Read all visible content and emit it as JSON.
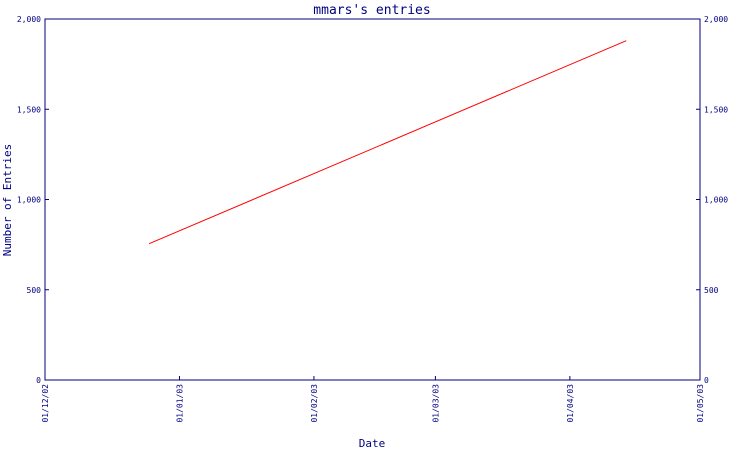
{
  "chart_data": {
    "type": "line",
    "title": "mmars's entries",
    "xlabel": "Date",
    "ylabel": "Number of Entries",
    "x_ticks": [
      "01/12/02",
      "01/01/03",
      "01/02/03",
      "01/03/03",
      "01/04/03",
      "01/05/03"
    ],
    "y_ticks": [
      "0",
      "500",
      "1,000",
      "1,500",
      "2,000"
    ],
    "y_tick_values": [
      0,
      500,
      1000,
      1500,
      2000
    ],
    "ylim": [
      0,
      2000
    ],
    "xlim": [
      "2002-12-01",
      "2003-05-01"
    ],
    "grid": false,
    "secondary_y_axis": true,
    "series": [
      {
        "color": "#ff0000",
        "points": [
          {
            "x": "2002-12-25",
            "y": 755
          },
          {
            "x": "2003-04-14",
            "y": 1880
          }
        ]
      }
    ]
  },
  "colors": {
    "axis": "#000080",
    "line": "#ff0000",
    "background": "#ffffff"
  }
}
